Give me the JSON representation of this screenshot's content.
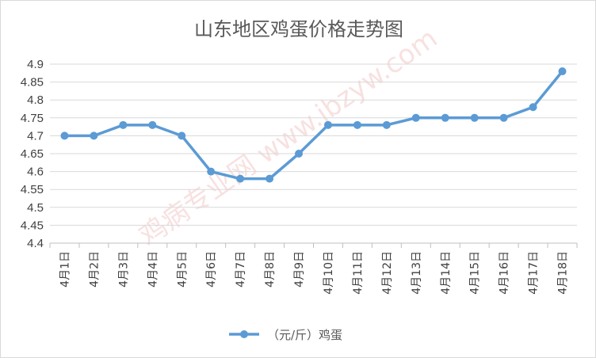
{
  "chart_data": {
    "type": "line",
    "title": "山东地区鸡蛋价格走势图",
    "xlabel": "",
    "ylabel": "",
    "categories": [
      "4月1日",
      "4月2日",
      "4月3日",
      "4月4日",
      "4月5日",
      "4月6日",
      "4月7日",
      "4月8日",
      "4月9日",
      "4月10日",
      "4月11日",
      "4月12日",
      "4月13日",
      "4月14日",
      "4月15日",
      "4月16日",
      "4月17日",
      "4月18日"
    ],
    "series": [
      {
        "name": "（元/斤）鸡蛋",
        "color": "#5b9bd5",
        "values": [
          4.7,
          4.7,
          4.73,
          4.73,
          4.7,
          4.6,
          4.58,
          4.58,
          4.65,
          4.73,
          4.73,
          4.73,
          4.75,
          4.75,
          4.75,
          4.75,
          4.78,
          4.88
        ]
      }
    ],
    "ylim": [
      4.4,
      4.9
    ],
    "yticks": [
      "4.9",
      "4.85",
      "4.8",
      "4.75",
      "4.7",
      "4.65",
      "4.6",
      "4.55",
      "4.5",
      "4.45",
      "4.4"
    ],
    "grid": true,
    "legend": "bottom"
  },
  "watermark": "鸡病专业网 www.jbzyw.com"
}
